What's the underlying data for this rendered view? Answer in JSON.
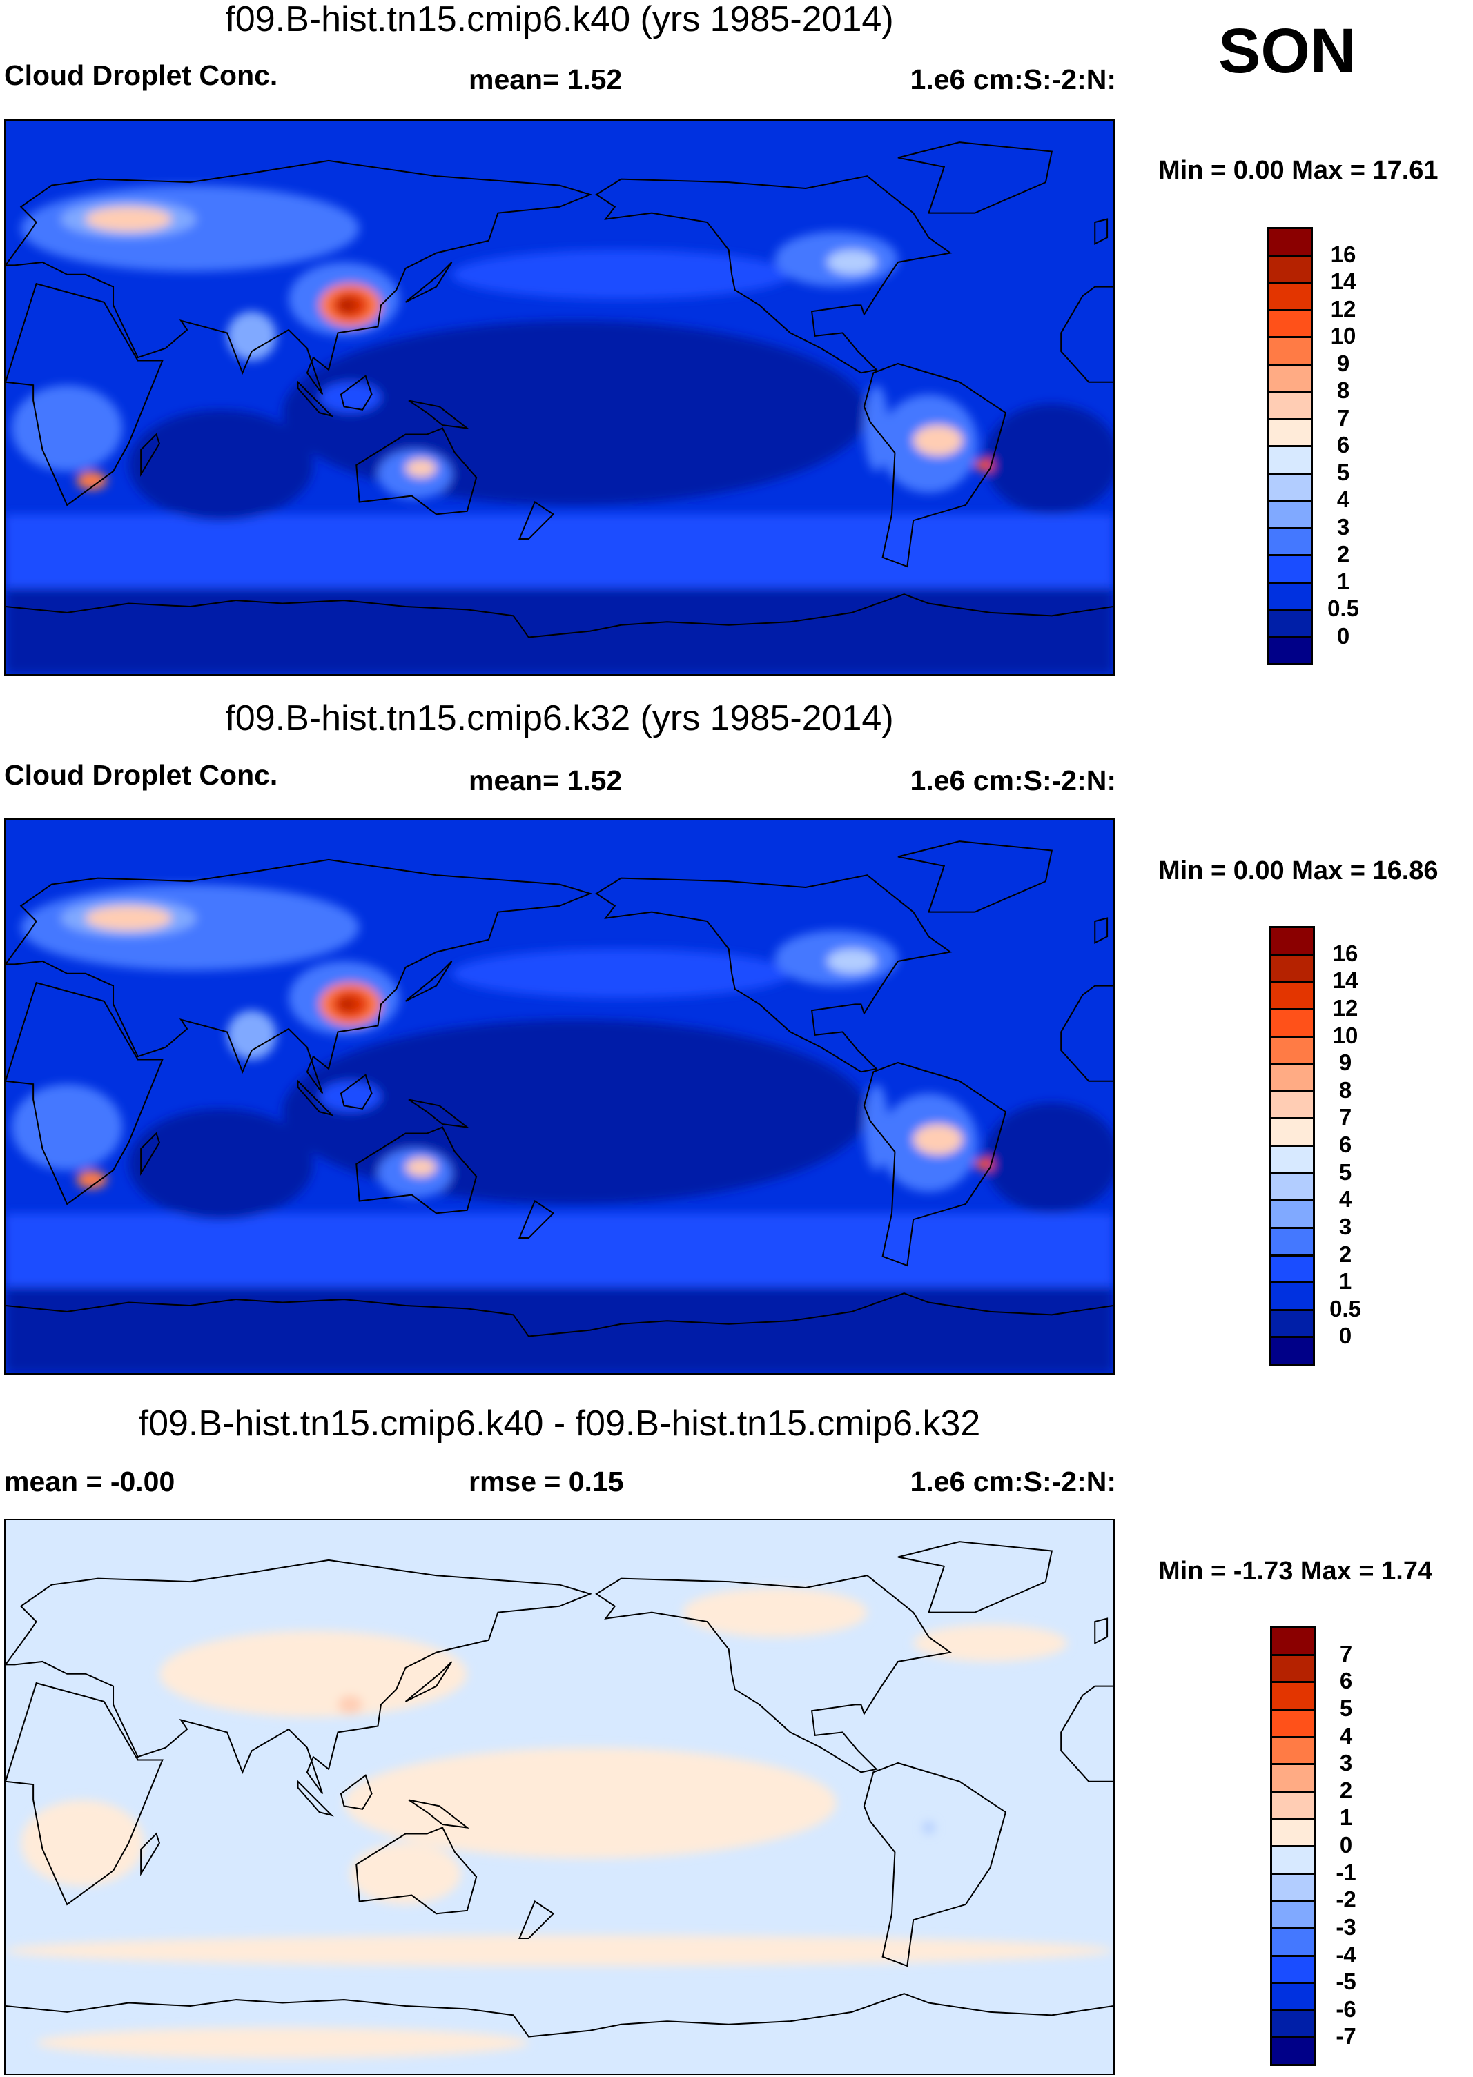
{
  "season": "SON",
  "colors": [
    "#8b0000",
    "#b52200",
    "#e33500",
    "#ff5119",
    "#ff7b45",
    "#ffab84",
    "#ffcdb4",
    "#ffebd9",
    "#d7e9ff",
    "#b2cdff",
    "#80a9ff",
    "#4478ff",
    "#1a4dff",
    "#0031e0",
    "#001fa8",
    "#000088"
  ],
  "chart_data": [
    {
      "type": "heatmap",
      "title": "f09.B-hist.tn15.cmip6.k40 (yrs 1985-2014)",
      "variable": "Cloud Droplet Conc.",
      "mean_label": "mean=   1.52",
      "mean": 1.52,
      "units": "1.e6 cm:S:-2:N:",
      "minmax_label": "Min =   0.00 Max =  17.61",
      "min": 0.0,
      "max": 17.61,
      "colorbar_levels": [
        "16",
        "14",
        "12",
        "10",
        "9",
        "8",
        "7",
        "6",
        "5",
        "4",
        "3",
        "2",
        "1",
        "0.5",
        "0"
      ]
    },
    {
      "type": "heatmap",
      "title": "f09.B-hist.tn15.cmip6.k32 (yrs 1985-2014)",
      "variable": "Cloud Droplet Conc.",
      "mean_label": "mean=   1.52",
      "mean": 1.52,
      "units": "1.e6 cm:S:-2:N:",
      "minmax_label": "Min =   0.00 Max =  16.86",
      "min": 0.0,
      "max": 16.86,
      "colorbar_levels": [
        "16",
        "14",
        "12",
        "10",
        "9",
        "8",
        "7",
        "6",
        "5",
        "4",
        "3",
        "2",
        "1",
        "0.5",
        "0"
      ]
    },
    {
      "type": "heatmap",
      "title": "f09.B-hist.tn15.cmip6.k40 - f09.B-hist.tn15.cmip6.k32",
      "variable": "mean =  -0.00",
      "mean_label": "rmse =   0.15",
      "mean": -0.0,
      "rmse": 0.15,
      "units": "1.e6 cm:S:-2:N:",
      "minmax_label": "Min =  -1.73 Max =   1.74",
      "min": -1.73,
      "max": 1.74,
      "colorbar_levels": [
        "7",
        "6",
        "5",
        "4",
        "3",
        "2",
        "1",
        "0",
        "-1",
        "-2",
        "-3",
        "-4",
        "-5",
        "-6",
        "-7"
      ]
    }
  ]
}
